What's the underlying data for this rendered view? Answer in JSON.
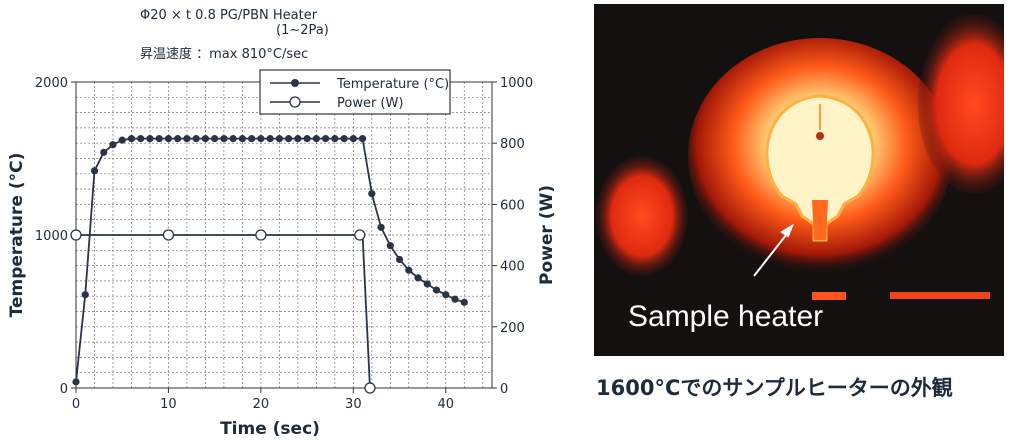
{
  "header": {
    "spec_line": "Φ20 × t 0.8     PG/PBN Heater",
    "pressure_line": "(1∼2Pa)",
    "rate_line": "昇温速度 ：max 810°C/sec"
  },
  "photo": {
    "label": "Sample heater",
    "caption": "1600°Cでのサンプルヒーターの外観"
  },
  "colors": {
    "ink": "#1e2b3c",
    "glow_core": "#fff6d0",
    "glow_outer": "#ff3a10",
    "background_photo": "#151010"
  },
  "chart_data": {
    "type": "line",
    "xlabel": "Time (sec)",
    "ylabel": "Temperature (°C)",
    "y2label": "Power (W)",
    "xlim": [
      0,
      45
    ],
    "ylim": [
      0,
      2000
    ],
    "y2lim": [
      0,
      1000
    ],
    "xticks": [
      "0",
      "10",
      "20",
      "30",
      "40"
    ],
    "yticks": [
      "0",
      "1000",
      "2000"
    ],
    "y2ticks": [
      "0",
      "200",
      "400",
      "600",
      "800",
      "1000"
    ],
    "grid": true,
    "legend_position": "top-right",
    "series": [
      {
        "name": "Temperature (°C)",
        "axis": "left",
        "marker": "filled-circle",
        "x": [
          0,
          1,
          2,
          3,
          4,
          5,
          6,
          7,
          8,
          9,
          10,
          11,
          12,
          13,
          14,
          15,
          16,
          17,
          18,
          19,
          20,
          21,
          22,
          23,
          24,
          25,
          26,
          27,
          28,
          29,
          30,
          31,
          32,
          33,
          34,
          35,
          36,
          37,
          38,
          39,
          40,
          41,
          42
        ],
        "y": [
          40,
          610,
          1420,
          1540,
          1590,
          1620,
          1630,
          1630,
          1630,
          1630,
          1630,
          1630,
          1630,
          1630,
          1630,
          1630,
          1630,
          1630,
          1630,
          1630,
          1630,
          1630,
          1630,
          1630,
          1630,
          1630,
          1630,
          1630,
          1630,
          1630,
          1630,
          1630,
          1270,
          1050,
          930,
          840,
          770,
          720,
          680,
          640,
          610,
          580,
          560
        ]
      },
      {
        "name": "Power (W)",
        "axis": "right",
        "marker": "open-circle",
        "x": [
          0,
          10,
          20,
          30,
          31,
          31.8
        ],
        "y": [
          500,
          500,
          500,
          500,
          500,
          0
        ],
        "marker_x": [
          0,
          10,
          20,
          30.7,
          31.8
        ]
      }
    ]
  }
}
